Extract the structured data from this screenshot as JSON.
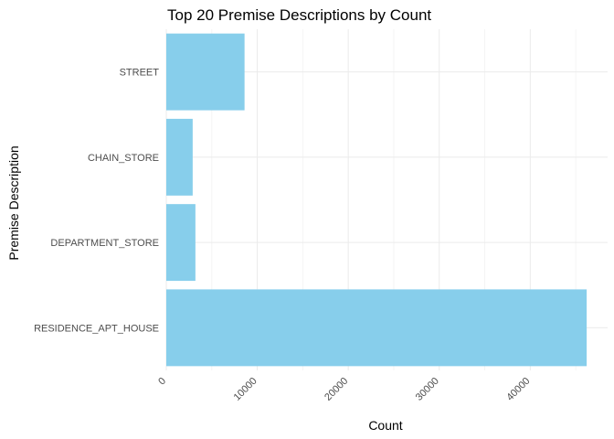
{
  "chart_data": {
    "type": "bar",
    "orientation": "horizontal",
    "title": "Top 20 Premise Descriptions by Count",
    "xlabel": "Count",
    "ylabel": "Premise Description",
    "categories": [
      "STREET",
      "CHAIN_STORE",
      "DEPARTMENT_STORE",
      "RESIDENCE_APT_HOUSE"
    ],
    "values": [
      8600,
      2900,
      3200,
      46200
    ],
    "xlim": [
      0,
      48500
    ],
    "x_ticks": [
      0,
      10000,
      20000,
      30000,
      40000
    ],
    "x_tick_labels": [
      "0",
      "10000",
      "20000",
      "30000",
      "40000"
    ],
    "tick_label_rotation": "45 degrees",
    "bar_color": "#87CEEB",
    "grid": true,
    "legend": "none",
    "theme": "minimal"
  }
}
